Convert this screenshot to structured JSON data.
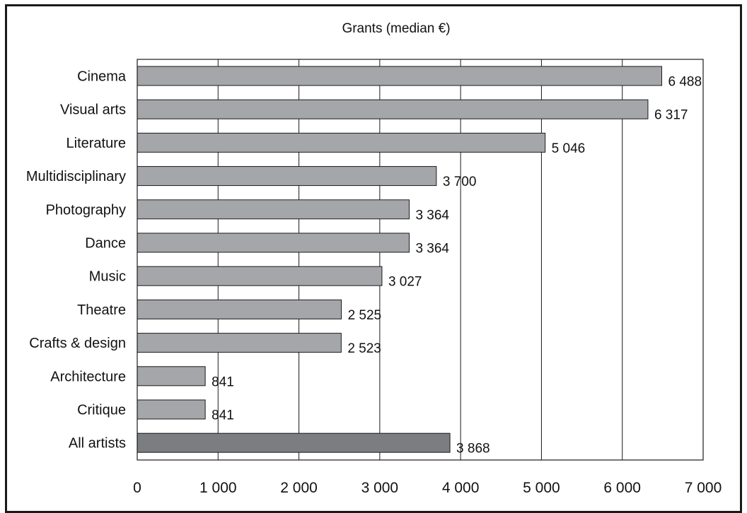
{
  "chart_data": {
    "type": "bar",
    "orientation": "horizontal",
    "title": "Grants (median €)",
    "categories": [
      "Cinema",
      "Visual arts",
      "Literature",
      "Multidisciplinary",
      "Photography",
      "Dance",
      "Music",
      "Theatre",
      "Crafts & design",
      "Architecture",
      "Critique",
      "All artists"
    ],
    "values": [
      6488,
      6317,
      5046,
      3700,
      3364,
      3364,
      3027,
      2525,
      2523,
      841,
      841,
      3868
    ],
    "value_labels": [
      "6 488",
      "6 317",
      "5 046",
      "3 700",
      "3 364",
      "3 364",
      "3 027",
      "2 525",
      "2 523",
      "841",
      "841",
      "3 868"
    ],
    "xlim": [
      0,
      7000
    ],
    "x_ticks": [
      0,
      1000,
      2000,
      3000,
      4000,
      5000,
      6000,
      7000
    ],
    "x_tick_labels": [
      "0",
      "1 000",
      "2 000",
      "3 000",
      "4 000",
      "5 000",
      "6 000",
      "7 000"
    ],
    "grid": "vertical",
    "colors": {
      "bar": "#a4a6a9",
      "highlight_bar": "#7b7d80",
      "edge": "#1a1a1a",
      "grid": "#1a1a1a"
    },
    "highlight_category": "All artists"
  }
}
